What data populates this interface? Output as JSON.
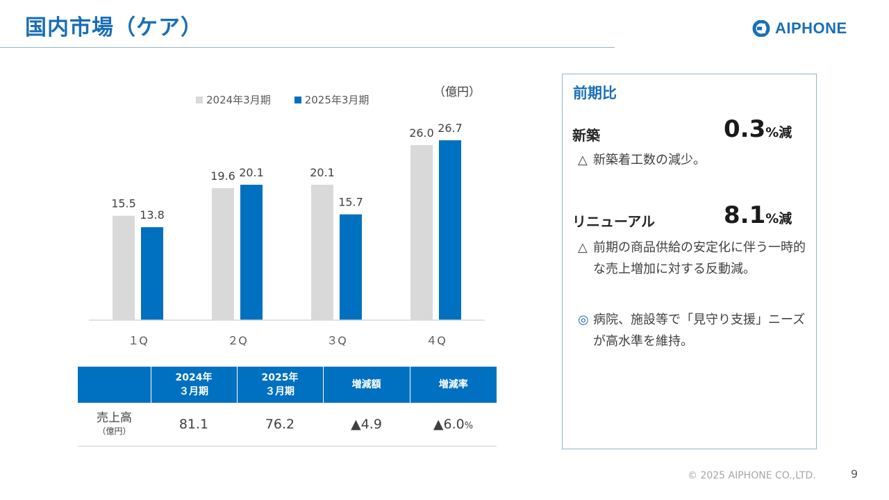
{
  "page": {
    "title": "国内市場（ケア）",
    "logo_text": "AIPHONE",
    "unit_label": "（億円）",
    "footer": "© 2025 AIPHONE CO.,LTD.",
    "page_number": "9"
  },
  "colors": {
    "brand": "#1a6fb5",
    "series_2024": "#d9d9d9",
    "series_2025": "#0070c0"
  },
  "chart_data": {
    "type": "bar",
    "categories": [
      "1Q",
      "2Q",
      "3Q",
      "4Q"
    ],
    "category_labels": [
      "１Q",
      "２Q",
      "３Q",
      "４Q"
    ],
    "series": [
      {
        "name": "2024年3月期",
        "values": [
          15.5,
          19.6,
          20.1,
          26.0
        ],
        "labels": [
          "15.5",
          "19.6",
          "20.1",
          "26.0"
        ]
      },
      {
        "name": "2025年3月期",
        "values": [
          13.8,
          20.1,
          15.7,
          26.7
        ],
        "labels": [
          "13.8",
          "20.1",
          "15.7",
          "26.7"
        ]
      }
    ],
    "ylim": [
      0,
      30
    ],
    "grid": false,
    "legend_position": "top"
  },
  "table": {
    "headers": [
      "",
      "2024年\n３月期",
      "2025年\n３月期",
      "増減額",
      "増減率"
    ],
    "row_label": "売上高",
    "row_sublabel": "（億円）",
    "values": [
      "81.1",
      "76.2",
      "▲4.9",
      "▲6.0"
    ],
    "pct_suffix": "%"
  },
  "panel": {
    "heading": "前期比",
    "segments": [
      {
        "label": "新築",
        "value": "0.3",
        "suffix": "%減",
        "notes": [
          {
            "mark": "△",
            "text": "新築着工数の減少。"
          }
        ]
      },
      {
        "label": "リニューアル",
        "value": "8.1",
        "suffix": "%減",
        "notes": [
          {
            "mark": "△",
            "text": "前期の商品供給の安定化に伴う一時的な売上増加に対する反動減。"
          },
          {
            "mark": "◎",
            "text": "病院、施設等で「見守り支援」ニーズが高水準を維持。"
          }
        ]
      }
    ]
  }
}
